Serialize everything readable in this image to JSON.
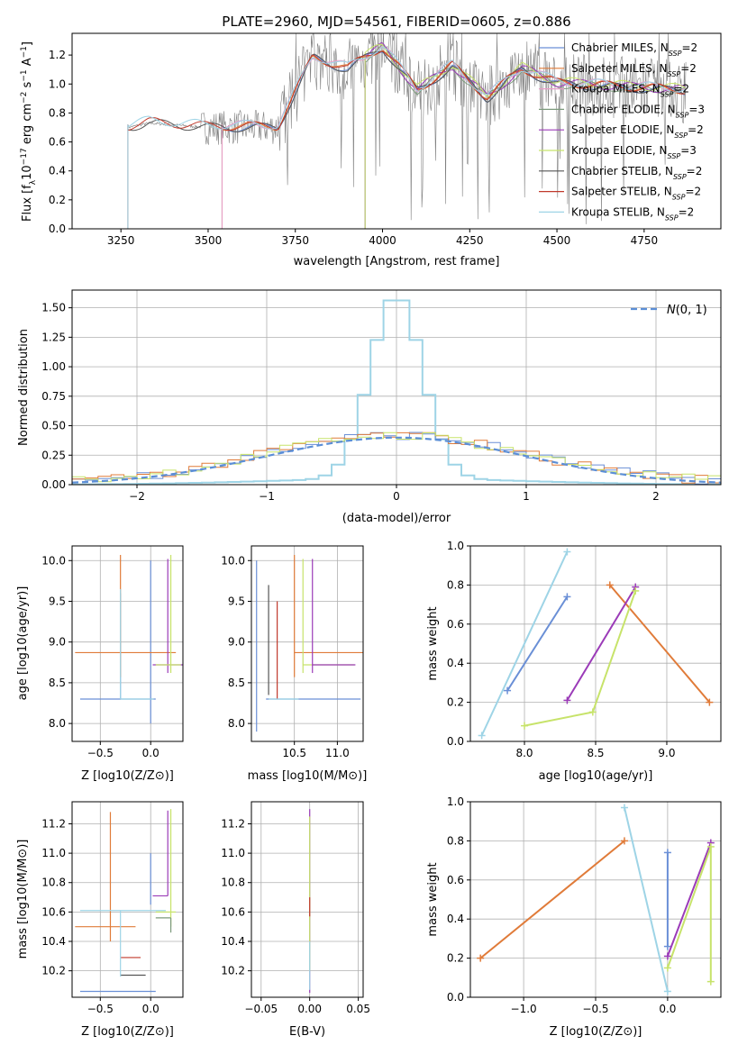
{
  "chart_data": [
    {
      "type": "line",
      "title": "PLATE=2960, MJD=54561, FIBERID=0605, z=0.886",
      "xlabel": "wavelength [Angstrom, rest frame]",
      "ylabel": "Flux [f_λ10^-17 erg cm^-2 s^-1 A^-1]",
      "xlim": [
        3110,
        4970
      ],
      "ylim": [
        0,
        1.35
      ],
      "xticks": [
        "3250",
        "3500",
        "3750",
        "4000",
        "4250",
        "4500",
        "4750"
      ],
      "yticks": [
        "0.0",
        "0.2",
        "0.4",
        "0.6",
        "0.8",
        "1.0",
        "1.2"
      ],
      "grid": false,
      "legend_position": "upper right",
      "data_series": {
        "name": "data",
        "color": "#808080",
        "x_start": 3270,
        "x_end": 4870,
        "approx_level": [
          [
            3270,
            0.7
          ],
          [
            3330,
            0.73
          ],
          [
            3500,
            0.7
          ],
          [
            3700,
            0.7
          ],
          [
            3800,
            1.18
          ],
          [
            3900,
            1.1
          ],
          [
            4000,
            1.25
          ],
          [
            4100,
            0.95
          ],
          [
            4200,
            1.12
          ],
          [
            4300,
            0.9
          ],
          [
            4400,
            1.1
          ],
          [
            4500,
            1.0
          ],
          [
            4650,
            0.98
          ],
          [
            4870,
            0.95
          ]
        ]
      },
      "series": [
        {
          "name": "Chabrier MILES, N_SSP=2",
          "label_main": "Chabrier MILES, N",
          "label_sub": "SSP",
          "label_tail": "=2",
          "color": "#6a8fd6",
          "x_start": 3540
        },
        {
          "name": "Salpeter MILES, N_SSP=2",
          "label_main": "Salpeter MILES, N",
          "label_sub": "SSP",
          "label_tail": "=2",
          "color": "#e07b39",
          "x_start": 3540
        },
        {
          "name": "Kroupa MILES, N_SSP=2",
          "label_main": "Kroupa MILES, N",
          "label_sub": "SSP",
          "label_tail": "=2",
          "color": "#e89fc9",
          "x_start": 3540
        },
        {
          "name": "Chabrier ELODIE, N_SSP=3",
          "label_main": "Chabrier ELODIE, N",
          "label_sub": "SSP",
          "label_tail": "=3",
          "color": "#7c9a7c",
          "x_start": 3950
        },
        {
          "name": "Salpeter ELODIE, N_SSP=2",
          "label_main": "Salpeter ELODIE, N",
          "label_sub": "SSP",
          "label_tail": "=2",
          "color": "#9b3bb8",
          "x_start": 3950
        },
        {
          "name": "Kroupa ELODIE, N_SSP=3",
          "label_main": "Kroupa ELODIE, N",
          "label_sub": "SSP",
          "label_tail": "=3",
          "color": "#c7e36a",
          "x_start": 3950
        },
        {
          "name": "Chabrier STELIB, N_SSP=2",
          "label_main": "Chabrier STELIB, N",
          "label_sub": "SSP",
          "label_tail": "=2",
          "color": "#555555",
          "x_start": 3270
        },
        {
          "name": "Salpeter STELIB, N_SSP=2",
          "label_main": "Salpeter STELIB, N",
          "label_sub": "SSP",
          "label_tail": "=2",
          "color": "#c0392b",
          "x_start": 3270
        },
        {
          "name": "Kroupa STELIB, N_SSP=2",
          "label_main": "Kroupa STELIB, N",
          "label_sub": "SSP",
          "label_tail": "=2",
          "color": "#9ed4e6",
          "x_start": 3270
        }
      ]
    },
    {
      "type": "line",
      "xlabel": "(data-model)/error",
      "ylabel": "Normed distribution",
      "xlim": [
        -2.5,
        2.5
      ],
      "ylim": [
        0,
        1.65
      ],
      "xticks": [
        "−2",
        "−1",
        "0",
        "1",
        "2"
      ],
      "yticks": [
        "0.00",
        "0.25",
        "0.50",
        "0.75",
        "1.00",
        "1.25",
        "1.50"
      ],
      "grid": true,
      "legend_position": "upper right",
      "gaussian": {
        "name": "N(0,1)",
        "color": "#5b8ed6",
        "dashed": true
      },
      "histograms": [
        {
          "color": "#9ed4e6",
          "profile": "narrow",
          "peak": 1.56
        },
        {
          "color": "#6a8fd6",
          "profile": "wide",
          "peak": 0.42
        },
        {
          "color": "#e07b39",
          "profile": "wide",
          "peak": 0.41
        },
        {
          "color": "#c7e36a",
          "profile": "wide",
          "peak": 0.4
        }
      ]
    },
    {
      "type": "scatter",
      "panel": "z-age",
      "xlabel": "Z [log10(Z/Z⊙)]",
      "ylabel": "age  [log10(age/yr)]",
      "xlim": [
        -0.78,
        0.32
      ],
      "ylim": [
        7.78,
        10.18
      ],
      "xticks": [
        "−0.5",
        "0.0"
      ],
      "yticks": [
        "8.0",
        "8.5",
        "9.0",
        "9.5",
        "10.0"
      ],
      "grid": true
    },
    {
      "type": "scatter",
      "panel": "mass-age",
      "xlabel": "mass [log10(M/M⊙)]",
      "ylabel": "",
      "xlim": [
        10.0,
        11.3
      ],
      "ylim": [
        7.78,
        10.18
      ],
      "xticks": [
        "10.5",
        "11.0"
      ],
      "yticks": [
        "8.0",
        "8.5",
        "9.0",
        "9.5",
        "10.0"
      ],
      "grid": true
    },
    {
      "type": "line",
      "panel": "age-weight",
      "xlabel": "age  [log10(age/yr)]",
      "ylabel": "mass weight",
      "xlim": [
        7.62,
        9.38
      ],
      "ylim": [
        0,
        1.0
      ],
      "xticks": [
        "8.0",
        "8.5",
        "9.0"
      ],
      "yticks": [
        "0.0",
        "0.2",
        "0.4",
        "0.6",
        "0.8",
        "1.0"
      ],
      "grid": true,
      "series": [
        {
          "color": "#9ed4e6",
          "x": [
            7.7,
            8.3
          ],
          "y": [
            0.03,
            0.97
          ]
        },
        {
          "color": "#6a8fd6",
          "x": [
            7.88,
            8.3
          ],
          "y": [
            0.26,
            0.74
          ]
        },
        {
          "color": "#e07b39",
          "x": [
            8.6,
            9.3
          ],
          "y": [
            0.8,
            0.2
          ]
        },
        {
          "color": "#9b3bb8",
          "x": [
            8.3,
            8.78
          ],
          "y": [
            0.21,
            0.79
          ]
        },
        {
          "color": "#c7e36a",
          "x": [
            8.0,
            8.48,
            8.78
          ],
          "y": [
            0.08,
            0.15,
            0.77
          ]
        }
      ]
    },
    {
      "type": "scatter",
      "panel": "z-mass",
      "xlabel": "Z [log10(Z/Z⊙)]",
      "ylabel": "mass [log10(M/M⊙)]",
      "xlim": [
        -0.78,
        0.32
      ],
      "ylim": [
        10.02,
        11.35
      ],
      "xticks": [
        "−0.5",
        "0.0"
      ],
      "yticks": [
        "10.2",
        "10.4",
        "10.6",
        "10.8",
        "11.0",
        "11.2"
      ],
      "grid": true
    },
    {
      "type": "scatter",
      "panel": "ebv-mass",
      "xlabel": "E(B-V)",
      "ylabel": "",
      "xlim": [
        -0.06,
        0.055
      ],
      "ylim": [
        10.02,
        11.35
      ],
      "xticks": [
        "−0.05",
        "0.00",
        "0.05"
      ],
      "yticks": [
        "10.2",
        "10.4",
        "10.6",
        "10.8",
        "11.0",
        "11.2"
      ],
      "grid": true
    },
    {
      "type": "line",
      "panel": "z-weight",
      "xlabel": "Z [log10(Z/Z⊙)]",
      "ylabel": "mass weight",
      "xlim": [
        -1.37,
        0.37
      ],
      "ylim": [
        0,
        1.0
      ],
      "xticks": [
        "−1.0",
        "−0.5",
        "0.0"
      ],
      "yticks": [
        "0.0",
        "0.2",
        "0.4",
        "0.6",
        "0.8",
        "1.0"
      ],
      "grid": true,
      "series": [
        {
          "color": "#9ed4e6",
          "x": [
            -0.3,
            0.0
          ],
          "y": [
            0.97,
            0.03
          ]
        },
        {
          "color": "#6a8fd6",
          "x": [
            0.0,
            0.0
          ],
          "y": [
            0.74,
            0.26
          ]
        },
        {
          "color": "#e07b39",
          "x": [
            -1.3,
            -0.3
          ],
          "y": [
            0.2,
            0.8
          ]
        },
        {
          "color": "#9b3bb8",
          "x": [
            0.0,
            0.3
          ],
          "y": [
            0.21,
            0.79
          ]
        },
        {
          "color": "#c7e36a",
          "x": [
            0.0,
            0.3,
            0.3
          ],
          "y": [
            0.15,
            0.77,
            0.08
          ]
        }
      ]
    }
  ]
}
